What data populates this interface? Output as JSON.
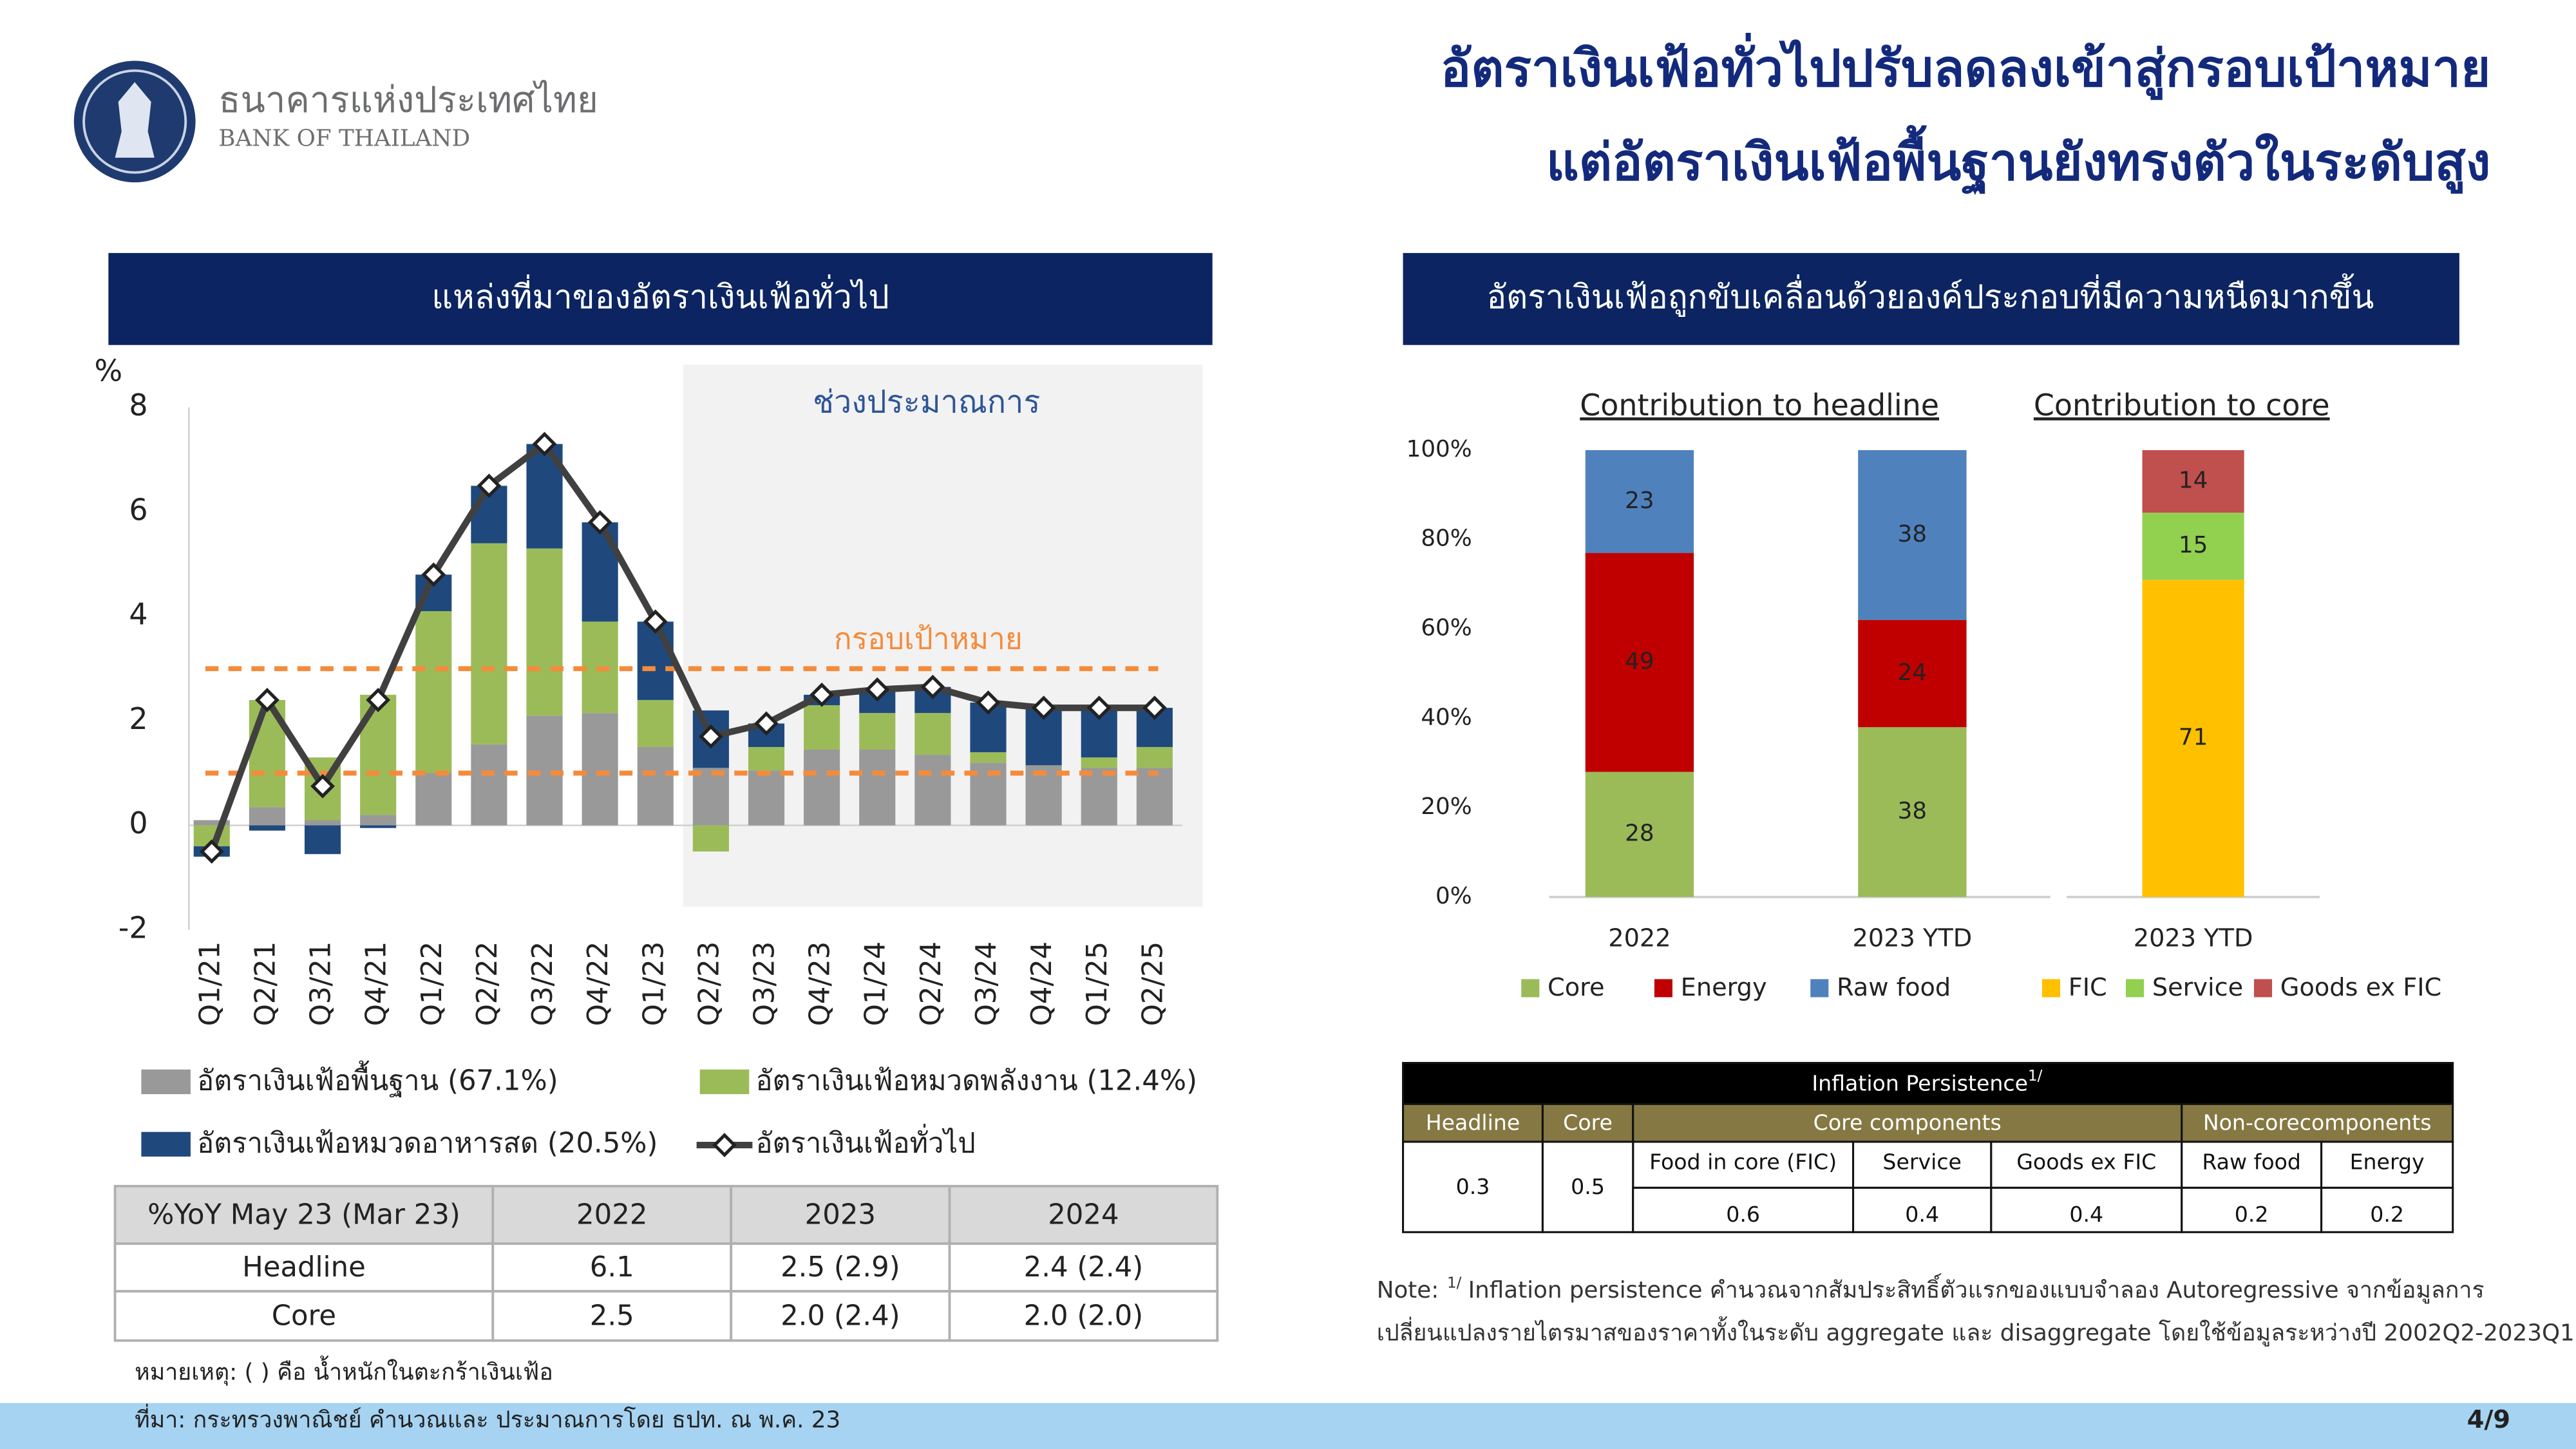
{
  "header": {
    "bank_name_th": "ธนาคารแห่งประเทศไทย",
    "bank_name_en": "BANK OF THAILAND",
    "title_lines": [
      "อัตราเงินเฟ้อทั่วไปปรับลดลงเข้าสู่กรอบเป้าหมาย",
      "แต่อัตราเงินเฟ้อพื้นฐานยังทรงตัวในระดับสูง"
    ]
  },
  "left_panel_title": "แหล่งที่มาของอัตราเงินเฟ้อทั่วไป",
  "right_panel_title": "อัตราเงินเฟ้อถูกขับเคลื่อนด้วยองค์ประกอบที่มีความหนืดมากขึ้น",
  "chart_data": [
    {
      "type": "combo",
      "unit_label": "%",
      "categories": [
        "Q1/21",
        "Q2/21",
        "Q3/21",
        "Q4/21",
        "Q1/22",
        "Q2/22",
        "Q3/22",
        "Q4/22",
        "Q1/23",
        "Q2/23",
        "Q3/23",
        "Q4/23",
        "Q1/24",
        "Q2/24",
        "Q3/24",
        "Q4/24",
        "Q1/25",
        "Q2/25"
      ],
      "series": [
        {
          "name": "อัตราเงินเฟ้อพื้นฐาน (67.1%)",
          "type": "bar",
          "color": "#999999",
          "values": [
            0.1,
            0.35,
            0.1,
            0.2,
            1.0,
            1.55,
            2.1,
            2.15,
            1.5,
            1.1,
            1.05,
            1.45,
            1.45,
            1.35,
            1.2,
            1.15,
            1.1,
            1.1
          ]
        },
        {
          "name": "อัตราเงินเฟ้อหมวดพลังงาน (12.4%)",
          "type": "bar",
          "color": "#9bbb59",
          "values": [
            -0.4,
            2.05,
            1.2,
            2.3,
            3.1,
            3.85,
            3.2,
            1.75,
            0.9,
            -0.5,
            0.45,
            0.85,
            0.7,
            0.8,
            0.2,
            0.0,
            0.2,
            0.4
          ]
        },
        {
          "name": "อัตราเงินเฟ้อหมวดอาหารสด (20.5%)",
          "type": "bar",
          "color": "#1f497d",
          "values": [
            -0.2,
            -0.1,
            -0.55,
            -0.05,
            0.7,
            1.1,
            2.0,
            1.9,
            1.5,
            1.1,
            0.45,
            0.2,
            0.45,
            0.5,
            0.95,
            1.1,
            0.95,
            0.75
          ]
        },
        {
          "name": "อัตราเงินเฟ้อทั่วไป",
          "type": "line",
          "color": "#404040",
          "values": [
            -0.5,
            2.4,
            0.75,
            2.4,
            4.8,
            6.5,
            7.3,
            5.8,
            3.9,
            1.7,
            1.95,
            2.5,
            2.6,
            2.65,
            2.35,
            2.25,
            2.25,
            2.25
          ]
        }
      ],
      "ylim": [
        -2,
        8
      ],
      "yticks": [
        -2,
        0,
        2,
        4,
        6,
        8
      ],
      "stacked": true,
      "target_band": {
        "label": "กรอบเป้าหมาย",
        "values": [
          1,
          3
        ],
        "color": "#f58b3a"
      },
      "forecast": {
        "label": "ช่วงประมาณการ",
        "from": "Q2/23"
      }
    },
    {
      "type": "stacked_bar",
      "panel_titles": [
        "Contribution to headline",
        "Contribution to core"
      ],
      "categories": [
        "2022",
        "2023 YTD",
        "2023 YTD"
      ],
      "series": [
        {
          "name": "Core",
          "color": "#9bbb59",
          "values": [
            28,
            38,
            null
          ]
        },
        {
          "name": "Energy",
          "color": "#c00000",
          "values": [
            49,
            24,
            null
          ]
        },
        {
          "name": "Raw food",
          "color": "#4f81bd",
          "values": [
            23,
            38,
            null
          ]
        },
        {
          "name": "FIC",
          "color": "#ffc000",
          "values": [
            null,
            null,
            71
          ]
        },
        {
          "name": "Service",
          "color": "#92d050",
          "values": [
            null,
            null,
            15
          ]
        },
        {
          "name": "Goods ex FIC",
          "color": "#c0504d",
          "values": [
            null,
            null,
            14
          ]
        }
      ],
      "ylim": [
        0,
        100
      ],
      "yticks": [
        {
          "value": 0,
          "label": "0%"
        },
        {
          "value": 20,
          "label": "20%"
        },
        {
          "value": 40,
          "label": "40%"
        },
        {
          "value": 60,
          "label": "60%"
        },
        {
          "value": 80,
          "label": "80%"
        },
        {
          "value": 100,
          "label": "100%"
        }
      ]
    }
  ],
  "forecast_table": {
    "header": [
      "%YoY May 23 (Mar 23)",
      "2022",
      "2023",
      "2024"
    ],
    "rows": [
      [
        "Headline",
        "6.1",
        "2.5 (2.9)",
        "2.4 (2.4)"
      ],
      [
        "Core",
        "2.5",
        "2.0 (2.4)",
        "2.0 (2.0)"
      ]
    ]
  },
  "persistence_table": {
    "title": "Inflation Persistence",
    "title_sup": "1/",
    "headers": [
      "Headline",
      "Core",
      "Core components",
      "Non-corecomponents"
    ],
    "subheaders": [
      "Food in core (FIC)",
      "Service",
      "Goods ex FIC",
      "Raw food",
      "Energy"
    ],
    "values": [
      0.3,
      0.5,
      0.6,
      0.4,
      0.4,
      0.2,
      0.2
    ]
  },
  "note": {
    "label": "Note:",
    "sup": "1/",
    "lines": [
      "Inflation persistence คำนวณจากสัมประสิทธิ์ตัวแรกของแบบจำลอง Autoregressive จากข้อมูลการ",
      "เปลี่ยนแปลงรายไตรมาสของราคาทั้งในระดับ aggregate และ disaggregate โดยใช้ข้อมูลระหว่างปี 2002Q2-2023Q1"
    ]
  },
  "footnote": "หมายเหตุ: ( ) คือ น้ำหนักในตะกร้าเงินเฟ้อ",
  "source": "ที่มา: กระทรวงพาณิชย์ คำนวณและ ประมาณการโดย ธปท. ณ พ.ค. 23",
  "page": "4/9"
}
